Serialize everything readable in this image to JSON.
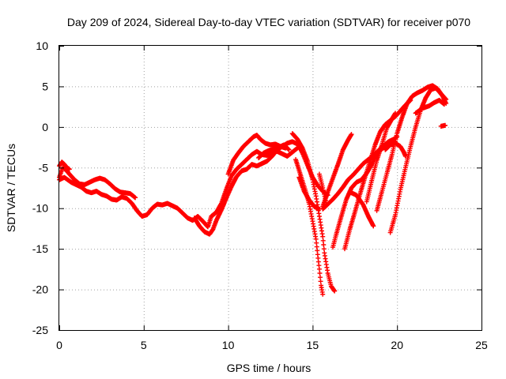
{
  "chart_data": {
    "type": "scatter",
    "title": "Day 209 of 2024, Sidereal Day-to-day VTEC variation (SDTVAR) for receiver p070",
    "xlabel": "GPS time / hours",
    "ylabel": "SDTVAR / TECUs",
    "xlim": [
      0,
      25
    ],
    "ylim": [
      -25,
      10
    ],
    "xticks": [
      "0",
      "5",
      "10",
      "15",
      "20",
      "25"
    ],
    "yticks": [
      "10",
      "5",
      "0",
      "-5",
      "-10",
      "-15",
      "-20",
      "-25"
    ],
    "xtick_values": [
      0,
      5,
      10,
      15,
      20,
      25
    ],
    "ytick_values": [
      10,
      5,
      0,
      -5,
      -10,
      -15,
      -20,
      -25
    ],
    "grid": true,
    "marker": "+",
    "color": "#ff0000",
    "tracks": [
      [
        [
          0.0,
          -6.5
        ],
        [
          0.3,
          -6.2
        ],
        [
          0.7,
          -6.8
        ],
        [
          1.0,
          -7.1
        ],
        [
          1.3,
          -7.4
        ],
        [
          1.6,
          -7.9
        ],
        [
          1.9,
          -8.1
        ],
        [
          2.2,
          -7.9
        ],
        [
          2.5,
          -8.3
        ],
        [
          2.8,
          -8.5
        ],
        [
          3.1,
          -8.9
        ],
        [
          3.4,
          -9.0
        ],
        [
          3.7,
          -8.6
        ],
        [
          4.0,
          -8.8
        ],
        [
          4.3,
          -9.4
        ],
        [
          4.6,
          -10.3
        ],
        [
          4.9,
          -11.0
        ],
        [
          5.2,
          -10.8
        ],
        [
          5.5,
          -10.0
        ],
        [
          5.8,
          -9.5
        ],
        [
          6.1,
          -9.6
        ],
        [
          6.4,
          -9.4
        ],
        [
          6.7,
          -9.7
        ],
        [
          7.0,
          -10.0
        ],
        [
          7.3,
          -10.6
        ],
        [
          7.6,
          -11.2
        ],
        [
          7.9,
          -11.5
        ],
        [
          8.2,
          -11.0
        ],
        [
          8.5,
          -11.6
        ],
        [
          8.8,
          -12.3
        ],
        [
          9.0,
          -11.0
        ],
        [
          9.3,
          -10.5
        ],
        [
          9.6,
          -9.4
        ],
        [
          9.9,
          -7.6
        ],
        [
          10.2,
          -6.0
        ],
        [
          10.5,
          -5.2
        ],
        [
          10.8,
          -4.6
        ],
        [
          11.1,
          -4.0
        ],
        [
          11.4,
          -3.4
        ],
        [
          11.7,
          -3.0
        ],
        [
          12.0,
          -3.4
        ],
        [
          12.3,
          -3.5
        ],
        [
          12.6,
          -3.2
        ],
        [
          12.9,
          -3.0
        ],
        [
          13.2,
          -3.3
        ],
        [
          13.5,
          -3.6
        ],
        [
          13.8,
          -3.1
        ],
        [
          14.1,
          -2.6
        ]
      ],
      [
        [
          0.0,
          -6.2
        ],
        [
          0.2,
          -5.0
        ],
        [
          0.4,
          -5.3
        ],
        [
          0.6,
          -5.8
        ],
        [
          0.9,
          -6.5
        ],
        [
          1.2,
          -7.0
        ],
        [
          1.5,
          -7.1
        ],
        [
          1.8,
          -6.8
        ],
        [
          2.1,
          -6.5
        ],
        [
          2.4,
          -6.3
        ],
        [
          2.7,
          -6.5
        ],
        [
          3.0,
          -7.0
        ],
        [
          3.3,
          -7.6
        ],
        [
          3.6,
          -8.0
        ],
        [
          3.9,
          -8.1
        ],
        [
          4.2,
          -8.2
        ],
        [
          4.5,
          -8.7
        ]
      ],
      [
        [
          0.0,
          -4.8
        ],
        [
          0.15,
          -4.3
        ],
        [
          0.3,
          -4.6
        ],
        [
          0.45,
          -5.0
        ],
        [
          0.6,
          -5.2
        ]
      ],
      [
        [
          8.0,
          -11.2
        ],
        [
          8.3,
          -12.2
        ],
        [
          8.6,
          -12.9
        ],
        [
          8.9,
          -13.2
        ],
        [
          9.1,
          -12.6
        ],
        [
          9.3,
          -11.5
        ],
        [
          9.6,
          -10.2
        ],
        [
          9.9,
          -8.7
        ],
        [
          10.2,
          -7.3
        ],
        [
          10.5,
          -6.1
        ],
        [
          10.8,
          -5.4
        ],
        [
          11.1,
          -5.2
        ],
        [
          11.4,
          -4.6
        ],
        [
          11.7,
          -4.8
        ],
        [
          12.0,
          -4.5
        ],
        [
          12.3,
          -4.2
        ],
        [
          12.6,
          -3.6
        ],
        [
          12.9,
          -2.8
        ],
        [
          13.2,
          -2.4
        ],
        [
          13.5,
          -2.0
        ],
        [
          13.8,
          -1.8
        ],
        [
          14.1,
          -2.1
        ]
      ],
      [
        [
          10.0,
          -5.8
        ],
        [
          10.3,
          -4.1
        ],
        [
          10.6,
          -3.2
        ],
        [
          10.9,
          -2.4
        ],
        [
          11.2,
          -1.8
        ],
        [
          11.5,
          -1.2
        ],
        [
          11.7,
          -1.0
        ],
        [
          11.9,
          -1.5
        ],
        [
          12.2,
          -2.0
        ],
        [
          12.5,
          -2.2
        ],
        [
          12.8,
          -2.1
        ],
        [
          13.1,
          -2.4
        ],
        [
          13.4,
          -2.6
        ]
      ],
      [
        [
          11.8,
          -3.8
        ],
        [
          12.1,
          -3.2
        ],
        [
          12.4,
          -2.9
        ],
        [
          12.7,
          -2.7
        ],
        [
          13.0,
          -2.5
        ],
        [
          13.3,
          -2.2
        ],
        [
          13.6,
          -2.8
        ]
      ],
      [
        [
          13.8,
          -0.8
        ],
        [
          14.1,
          -1.5
        ],
        [
          14.4,
          -2.6
        ],
        [
          14.7,
          -4.2
        ],
        [
          15.0,
          -6.5
        ],
        [
          15.2,
          -8.5
        ],
        [
          15.4,
          -11.0
        ],
        [
          15.6,
          -13.5
        ],
        [
          15.7,
          -15.5
        ],
        [
          15.9,
          -18.0
        ],
        [
          16.1,
          -19.6
        ],
        [
          16.3,
          -20.2
        ]
      ],
      [
        [
          14.0,
          -4.0
        ],
        [
          14.3,
          -6.0
        ],
        [
          14.6,
          -8.0
        ],
        [
          14.8,
          -9.5
        ],
        [
          15.0,
          -11.6
        ],
        [
          15.2,
          -13.8
        ],
        [
          15.3,
          -15.7
        ],
        [
          15.4,
          -17.5
        ],
        [
          15.5,
          -19.5
        ],
        [
          15.6,
          -20.6
        ]
      ],
      [
        [
          14.2,
          -6.2
        ],
        [
          14.5,
          -7.9
        ],
        [
          14.8,
          -9.0
        ],
        [
          15.1,
          -9.8
        ],
        [
          15.4,
          -10.1
        ]
      ],
      [
        [
          14.1,
          -2.0
        ],
        [
          14.4,
          -3.2
        ],
        [
          14.7,
          -4.7
        ],
        [
          15.0,
          -6.2
        ],
        [
          15.3,
          -7.2
        ],
        [
          15.6,
          -7.9
        ],
        [
          15.9,
          -8.4
        ]
      ],
      [
        [
          15.4,
          -5.8
        ],
        [
          15.6,
          -7.5
        ],
        [
          15.8,
          -9.3
        ]
      ],
      [
        [
          15.6,
          -9.8
        ],
        [
          15.9,
          -8.0
        ],
        [
          16.2,
          -6.3
        ],
        [
          16.5,
          -4.6
        ],
        [
          16.8,
          -2.8
        ],
        [
          17.1,
          -1.6
        ],
        [
          17.3,
          -0.9
        ]
      ],
      [
        [
          16.2,
          -14.8
        ],
        [
          16.4,
          -13.2
        ],
        [
          16.7,
          -11.0
        ],
        [
          17.0,
          -8.9
        ],
        [
          17.3,
          -7.5
        ],
        [
          17.6,
          -6.8
        ],
        [
          17.9,
          -6.5
        ],
        [
          18.2,
          -5.7
        ],
        [
          18.5,
          -4.6
        ],
        [
          18.8,
          -3.1
        ],
        [
          19.1,
          -2.7
        ],
        [
          19.4,
          -2.3
        ]
      ],
      [
        [
          15.6,
          -10.1
        ],
        [
          15.9,
          -9.5
        ],
        [
          16.2,
          -8.9
        ],
        [
          16.5,
          -8.2
        ],
        [
          16.8,
          -7.4
        ],
        [
          17.1,
          -6.5
        ],
        [
          17.4,
          -5.9
        ],
        [
          17.7,
          -5.2
        ],
        [
          18.0,
          -4.5
        ],
        [
          18.3,
          -4.0
        ],
        [
          18.6,
          -3.5
        ],
        [
          18.9,
          -2.9
        ],
        [
          19.2,
          -2.3
        ],
        [
          19.5,
          -1.8
        ],
        [
          19.8,
          -1.5
        ],
        [
          20.0,
          -1.2
        ]
      ],
      [
        [
          16.9,
          -15.0
        ],
        [
          17.2,
          -12.6
        ],
        [
          17.5,
          -10.5
        ],
        [
          17.8,
          -8.3
        ],
        [
          18.1,
          -6.2
        ],
        [
          18.4,
          -4.2
        ],
        [
          18.7,
          -2.2
        ],
        [
          19.0,
          -0.6
        ],
        [
          19.3,
          0.3
        ],
        [
          19.6,
          0.8
        ],
        [
          19.9,
          1.3
        ],
        [
          20.2,
          2.0
        ],
        [
          20.5,
          2.7
        ],
        [
          20.8,
          3.3
        ]
      ],
      [
        [
          17.2,
          -8.0
        ],
        [
          17.6,
          -8.4
        ],
        [
          18.0,
          -9.6
        ],
        [
          18.3,
          -11.0
        ],
        [
          18.6,
          -12.2
        ]
      ],
      [
        [
          18.2,
          -9.2
        ],
        [
          18.5,
          -6.6
        ],
        [
          18.8,
          -4.1
        ],
        [
          19.1,
          -2.2
        ],
        [
          19.4,
          -0.1
        ],
        [
          19.7,
          1.0
        ],
        [
          19.9,
          1.7
        ]
      ],
      [
        [
          18.8,
          -10.3
        ],
        [
          19.1,
          -8.0
        ],
        [
          19.4,
          -5.7
        ],
        [
          19.7,
          -3.4
        ],
        [
          20.0,
          -0.8
        ],
        [
          20.3,
          1.2
        ],
        [
          20.6,
          2.9
        ],
        [
          20.9,
          3.8
        ],
        [
          21.2,
          4.2
        ],
        [
          21.5,
          4.5
        ],
        [
          21.8,
          4.9
        ],
        [
          22.1,
          5.1
        ],
        [
          22.4,
          4.7
        ],
        [
          22.7,
          3.8
        ],
        [
          22.9,
          2.9
        ]
      ],
      [
        [
          19.6,
          -13.0
        ],
        [
          19.9,
          -10.8
        ],
        [
          20.2,
          -7.7
        ],
        [
          20.5,
          -5.0
        ],
        [
          20.8,
          -2.4
        ],
        [
          21.1,
          0.0
        ],
        [
          21.4,
          2.1
        ],
        [
          21.7,
          3.6
        ],
        [
          22.0,
          4.6
        ],
        [
          22.3,
          4.8
        ],
        [
          22.6,
          4.1
        ],
        [
          22.9,
          3.4
        ]
      ],
      [
        [
          19.3,
          -2.8
        ],
        [
          19.6,
          -2.2
        ],
        [
          19.9,
          -2.0
        ],
        [
          20.2,
          -2.4
        ],
        [
          20.4,
          -3.1
        ],
        [
          20.5,
          -3.6
        ]
      ],
      [
        [
          21.1,
          1.7
        ],
        [
          21.5,
          2.3
        ],
        [
          21.9,
          2.6
        ],
        [
          22.2,
          3.0
        ],
        [
          22.5,
          3.3
        ],
        [
          22.8,
          2.8
        ]
      ],
      [
        [
          22.6,
          0.1
        ],
        [
          22.85,
          0.2
        ]
      ]
    ]
  }
}
